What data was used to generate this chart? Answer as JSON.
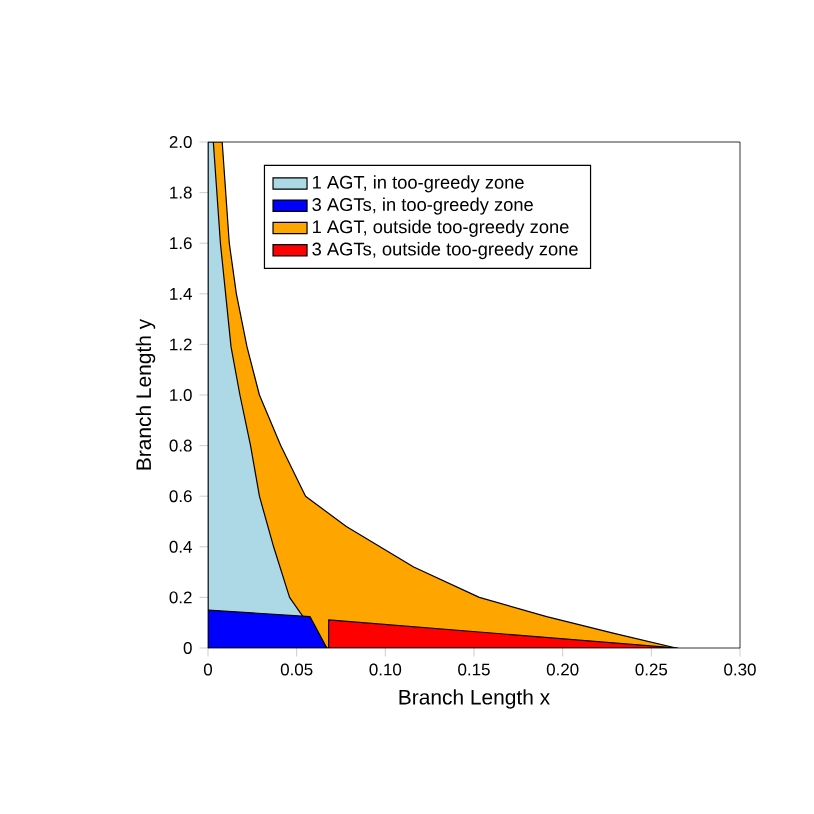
{
  "chart_data": {
    "type": "area",
    "xlabel": "Branch Length x",
    "ylabel": "Branch Length y",
    "xlim": [
      0,
      0.3
    ],
    "ylim": [
      0,
      2.0
    ],
    "xticks": [
      0,
      0.05,
      {
        "value": 0.1,
        "label": "0.10"
      },
      0.15,
      {
        "value": 0.2,
        "label": "0.20"
      },
      0.25,
      {
        "value": 0.3,
        "label": "0.30"
      }
    ],
    "yticks": [
      0,
      0.2,
      0.4,
      0.6,
      0.8,
      {
        "value": 1.0,
        "label": "1.0"
      },
      1.2,
      1.4,
      1.6,
      1.8,
      {
        "value": 2.0,
        "label": "2.0"
      }
    ],
    "legend": "top",
    "grid": false,
    "series": [
      {
        "name": "1 AGT, in too-greedy zone",
        "color": "#add8e6",
        "x": [
          0,
          0.003,
          0.007,
          0.013,
          0.018,
          0.024,
          0.029,
          0.037,
          0.046,
          0.052,
          0.067
        ],
        "values": [
          2.0,
          2.0,
          1.6,
          1.19,
          1.0,
          0.8,
          0.6,
          0.4,
          0.2,
          0.14,
          0
        ]
      },
      {
        "name": "3 AGTs, in too-greedy zone",
        "color": "#0000ff",
        "x": [
          0,
          0.0575,
          0.067
        ],
        "values": [
          0.15,
          0.124,
          0
        ]
      },
      {
        "name": "1 AGT, outside too-greedy zone",
        "color": "#ffa500",
        "x": [
          0,
          0.008,
          0.012,
          0.016,
          0.022,
          0.029,
          0.041,
          0.055,
          0.078,
          0.116,
          0.153,
          0.191,
          0.229,
          0.264
        ],
        "values": [
          2.0,
          2.0,
          1.6,
          1.4,
          1.19,
          1.0,
          0.8,
          0.6,
          0.48,
          0.32,
          0.2,
          0.124,
          0.058,
          0
        ]
      },
      {
        "name": "3 AGTs, outside too-greedy zone",
        "color": "#ff0000",
        "x": [
          0.068,
          0.265
        ],
        "values": [
          0.111,
          0
        ]
      }
    ]
  }
}
